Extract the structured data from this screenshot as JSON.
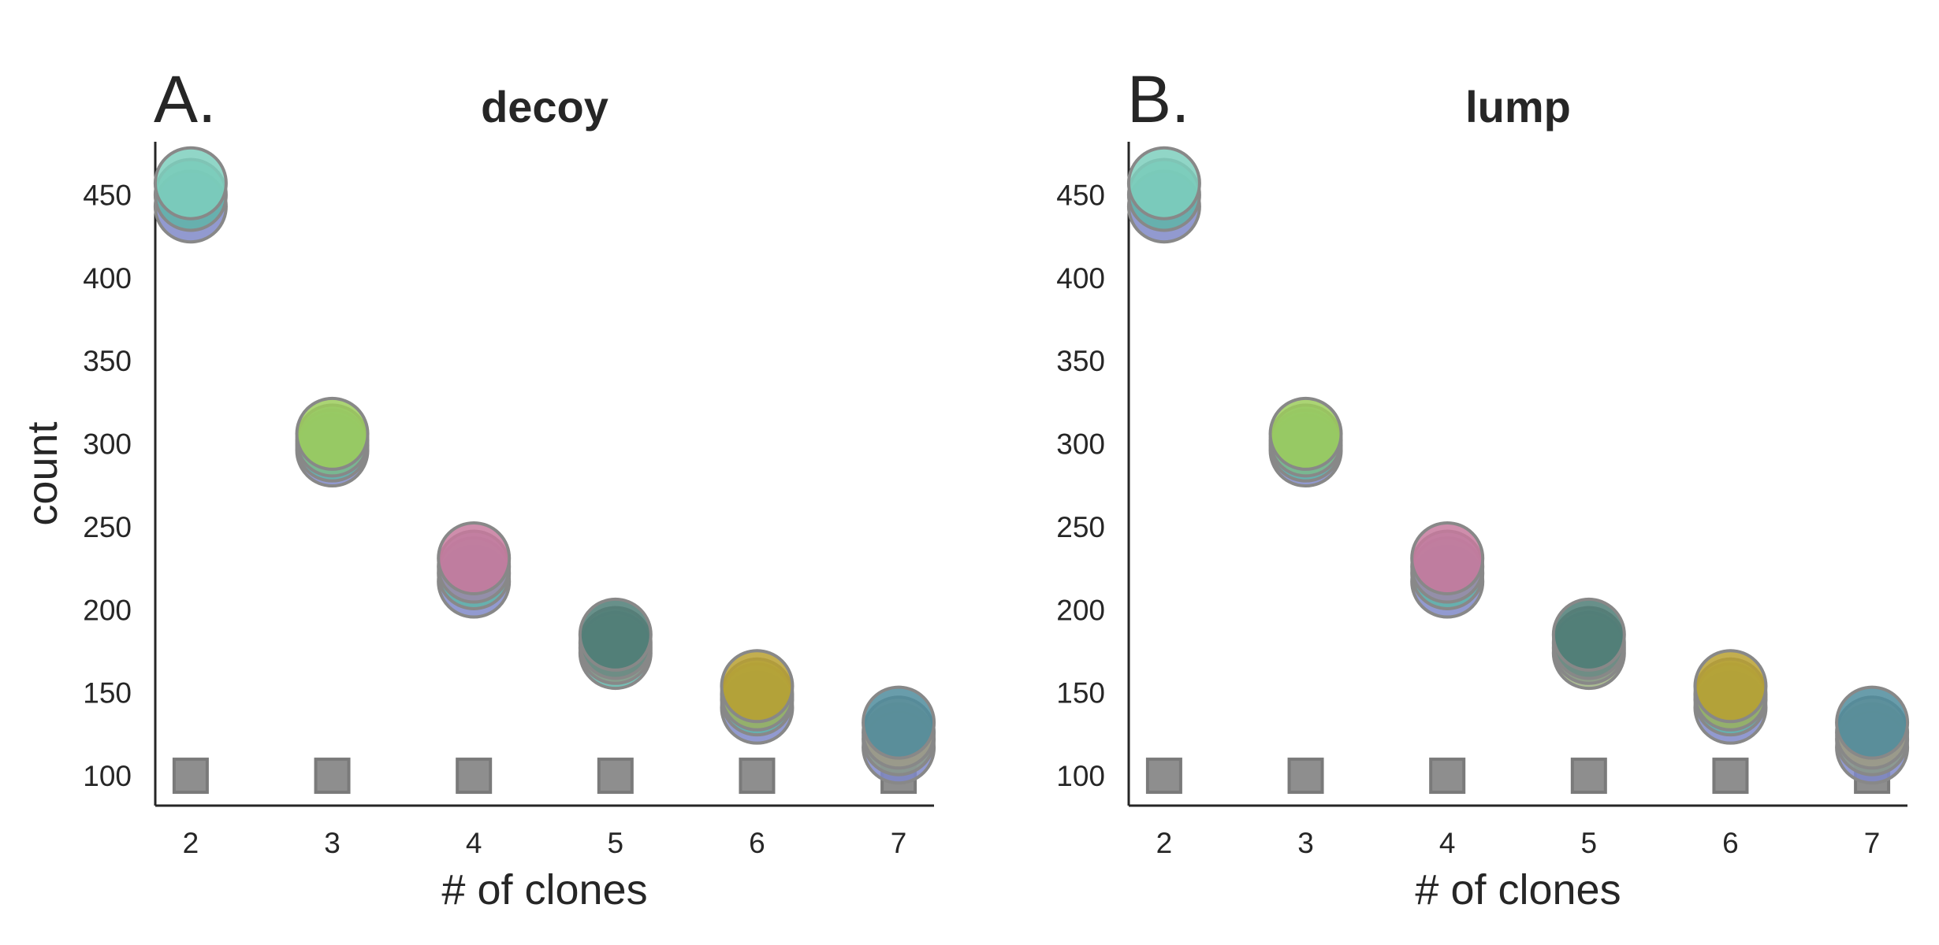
{
  "chart_data": [
    {
      "panel": "A.",
      "title": "decoy",
      "type": "scatter",
      "xlabel": "# of clones",
      "ylabel": "count",
      "x_ticks": [
        "2",
        "3",
        "4",
        "5",
        "6",
        "7"
      ],
      "y_ticks": [
        "100",
        "150",
        "200",
        "250",
        "300",
        "350",
        "400",
        "450"
      ],
      "xlim": [
        1.75,
        7.25
      ],
      "ylim": [
        82,
        482
      ],
      "grid": false,
      "baseline_markers": {
        "x": [
          2,
          3,
          4,
          5,
          6,
          7
        ],
        "y": 100,
        "color": "#8e8e8e",
        "shape": "square"
      },
      "points": [
        {
          "x": 2,
          "y": 443,
          "color": "#7f88c8"
        },
        {
          "x": 2,
          "y": 450,
          "color": "#5fb4a8"
        },
        {
          "x": 2,
          "y": 457,
          "color": "#7ecfbd"
        },
        {
          "x": 3,
          "y": 296,
          "color": "#7f88c8"
        },
        {
          "x": 3,
          "y": 299,
          "color": "#5fb4a8"
        },
        {
          "x": 3,
          "y": 302,
          "color": "#7cb88c"
        },
        {
          "x": 3,
          "y": 306,
          "color": "#9ccc5c"
        },
        {
          "x": 4,
          "y": 217,
          "color": "#7f88c8"
        },
        {
          "x": 4,
          "y": 222,
          "color": "#5fb4a8"
        },
        {
          "x": 4,
          "y": 226,
          "color": "#9c8aa8"
        },
        {
          "x": 4,
          "y": 231,
          "color": "#c77a9e"
        },
        {
          "x": 5,
          "y": 174,
          "color": "#5fb4a8"
        },
        {
          "x": 5,
          "y": 177,
          "color": "#8a9a88"
        },
        {
          "x": 5,
          "y": 180,
          "color": "#6a8a84"
        },
        {
          "x": 5,
          "y": 185,
          "color": "#4e7c76"
        },
        {
          "x": 6,
          "y": 141,
          "color": "#7f88c8"
        },
        {
          "x": 6,
          "y": 146,
          "color": "#5fb4a8"
        },
        {
          "x": 6,
          "y": 149,
          "color": "#9cb060"
        },
        {
          "x": 6,
          "y": 154,
          "color": "#b8a030"
        },
        {
          "x": 7,
          "y": 117,
          "color": "#7f88c8"
        },
        {
          "x": 7,
          "y": 122,
          "color": "#8c9a88"
        },
        {
          "x": 7,
          "y": 126,
          "color": "#9c9a8a"
        },
        {
          "x": 7,
          "y": 132,
          "color": "#4f8c9c"
        }
      ]
    },
    {
      "panel": "B.",
      "title": "lump",
      "type": "scatter",
      "xlabel": "# of clones",
      "ylabel": "",
      "x_ticks": [
        "2",
        "3",
        "4",
        "5",
        "6",
        "7"
      ],
      "y_ticks": [
        "100",
        "150",
        "200",
        "250",
        "300",
        "350",
        "400",
        "450"
      ],
      "xlim": [
        1.75,
        7.25
      ],
      "ylim": [
        82,
        482
      ],
      "grid": false,
      "baseline_markers": {
        "x": [
          2,
          3,
          4,
          5,
          6,
          7
        ],
        "y": 100,
        "color": "#8e8e8e",
        "shape": "square"
      },
      "points": [
        {
          "x": 2,
          "y": 443,
          "color": "#7f88c8"
        },
        {
          "x": 2,
          "y": 450,
          "color": "#5fb4a8"
        },
        {
          "x": 2,
          "y": 457,
          "color": "#7ecfbd"
        },
        {
          "x": 3,
          "y": 296,
          "color": "#7f88c8"
        },
        {
          "x": 3,
          "y": 299,
          "color": "#5fb4a8"
        },
        {
          "x": 3,
          "y": 302,
          "color": "#7cb88c"
        },
        {
          "x": 3,
          "y": 306,
          "color": "#9ccc5c"
        },
        {
          "x": 4,
          "y": 217,
          "color": "#7f88c8"
        },
        {
          "x": 4,
          "y": 222,
          "color": "#5fb4a8"
        },
        {
          "x": 4,
          "y": 226,
          "color": "#9c8aa8"
        },
        {
          "x": 4,
          "y": 231,
          "color": "#c77a9e"
        },
        {
          "x": 5,
          "y": 174,
          "color": "#9cb080"
        },
        {
          "x": 5,
          "y": 177,
          "color": "#8a9a88"
        },
        {
          "x": 5,
          "y": 180,
          "color": "#6a8a84"
        },
        {
          "x": 5,
          "y": 185,
          "color": "#4e7c76"
        },
        {
          "x": 6,
          "y": 141,
          "color": "#7f88c8"
        },
        {
          "x": 6,
          "y": 146,
          "color": "#5fb4a8"
        },
        {
          "x": 6,
          "y": 149,
          "color": "#9cb060"
        },
        {
          "x": 6,
          "y": 154,
          "color": "#b8a030"
        },
        {
          "x": 7,
          "y": 117,
          "color": "#7f88c8"
        },
        {
          "x": 7,
          "y": 122,
          "color": "#8c9a88"
        },
        {
          "x": 7,
          "y": 126,
          "color": "#9c9a8a"
        },
        {
          "x": 7,
          "y": 132,
          "color": "#4f8c9c"
        }
      ]
    }
  ]
}
